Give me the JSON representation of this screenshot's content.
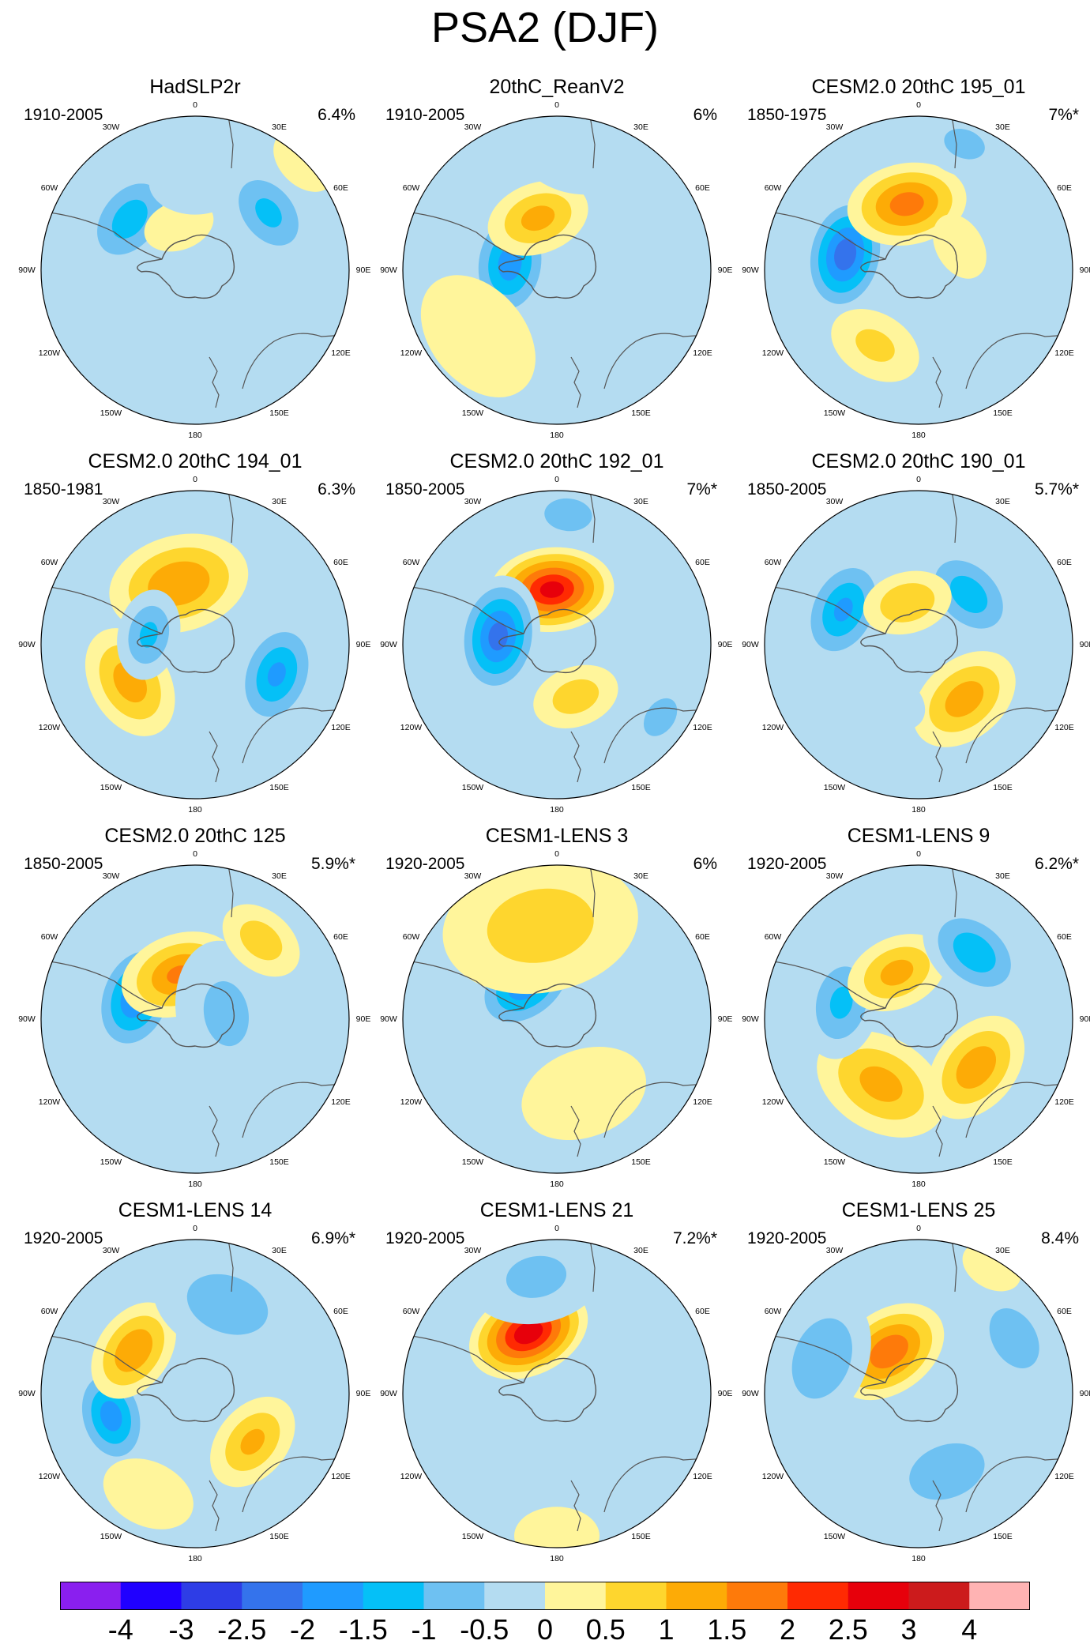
{
  "title": "PSA2 (DJF)",
  "lon_labels": [
    "0",
    "30E",
    "60E",
    "90E",
    "120E",
    "150E",
    "180",
    "150W",
    "120W",
    "90W",
    "60W",
    "30W"
  ],
  "panels": [
    {
      "title": "HadSLP2r",
      "years": "1910-2005",
      "pct": "6.4%",
      "blobs": [
        {
          "a": 232,
          "r": 105,
          "v": -1.5,
          "s": 1.0
        },
        {
          "a": 128,
          "r": 118,
          "v": -1.3,
          "s": 1.0
        },
        {
          "a": 200,
          "r": 60,
          "v": 0.7,
          "s": 0.7
        },
        {
          "a": 180,
          "r": 110,
          "v": -0.7,
          "s": 0.9
        },
        {
          "a": 135,
          "r": 195,
          "v": 0.4,
          "s": 0.8
        }
      ]
    },
    {
      "title": "20thC_ReanV2",
      "years": "1910-2005",
      "pct": "6%",
      "blobs": [
        {
          "a": 262,
          "r": 60,
          "v": -2.0,
          "s": 1.0
        },
        {
          "a": 200,
          "r": 70,
          "v": 1.4,
          "s": 0.9
        },
        {
          "a": 310,
          "r": 130,
          "v": 0.6,
          "s": 1.4
        },
        {
          "a": 170,
          "r": 150,
          "v": -0.6,
          "s": 1.2
        }
      ]
    },
    {
      "title": "CESM2.0 20thC 195_01",
      "years": "1850-1975",
      "pct": "7%*",
      "blobs": [
        {
          "a": 258,
          "r": 95,
          "v": -2.6,
          "s": 1.0
        },
        {
          "a": 190,
          "r": 85,
          "v": 2.0,
          "s": 1.0
        },
        {
          "a": 330,
          "r": 110,
          "v": 0.8,
          "s": 0.9
        },
        {
          "a": 120,
          "r": 60,
          "v": 0.6,
          "s": 0.7
        },
        {
          "a": 160,
          "r": 170,
          "v": -0.8,
          "s": 0.9
        }
      ]
    },
    {
      "title": "CESM2.0 20thC 194_01",
      "years": "1850-1981",
      "pct": "6.3%",
      "blobs": [
        {
          "a": 195,
          "r": 80,
          "v": 1.7,
          "s": 1.2
        },
        {
          "a": 300,
          "r": 95,
          "v": 1.5,
          "s": 1.0
        },
        {
          "a": 70,
          "r": 110,
          "v": -1.8,
          "s": 1.0
        },
        {
          "a": 258,
          "r": 60,
          "v": -1.3,
          "s": 0.8
        }
      ]
    },
    {
      "title": "CESM2.0 20thC 192_01",
      "years": "1850-2005",
      "pct": "7%*",
      "blobs": [
        {
          "a": 185,
          "r": 70,
          "v": 3.0,
          "s": 1.0
        },
        {
          "a": 262,
          "r": 75,
          "v": -2.5,
          "s": 1.0
        },
        {
          "a": 20,
          "r": 70,
          "v": 1.0,
          "s": 0.8
        },
        {
          "a": 175,
          "r": 165,
          "v": -1.0,
          "s": 0.8
        },
        {
          "a": 55,
          "r": 160,
          "v": -1.0,
          "s": 0.7
        }
      ]
    },
    {
      "title": "CESM2.0 20thC 190_01",
      "years": "1850-2005",
      "pct": "5.7%*",
      "blobs": [
        {
          "a": 245,
          "r": 105,
          "v": -1.8,
          "s": 1.0
        },
        {
          "a": 135,
          "r": 90,
          "v": -1.5,
          "s": 1.0
        },
        {
          "a": 40,
          "r": 90,
          "v": 1.5,
          "s": 1.0
        },
        {
          "a": 195,
          "r": 55,
          "v": 1.2,
          "s": 0.8
        },
        {
          "a": 330,
          "r": 80,
          "v": -0.7,
          "s": 0.8
        }
      ]
    },
    {
      "title": "CESM2.0 20thC 125",
      "years": "1850-2005",
      "pct": "5.9%*",
      "blobs": [
        {
          "a": 250,
          "r": 80,
          "v": -2.2,
          "s": 1.0
        },
        {
          "a": 200,
          "r": 60,
          "v": 1.8,
          "s": 1.0
        },
        {
          "a": 100,
          "r": 40,
          "v": -0.8,
          "s": 1.4
        },
        {
          "a": 140,
          "r": 130,
          "v": 1.0,
          "s": 0.8
        }
      ]
    },
    {
      "title": "CESM1-LENS 3",
      "years": "1920-2005",
      "pct": "6%",
      "blobs": [
        {
          "a": 220,
          "r": 60,
          "v": -2.2,
          "s": 1.0
        },
        {
          "a": 190,
          "r": 120,
          "v": 1.0,
          "s": 1.8
        },
        {
          "a": 20,
          "r": 100,
          "v": 0.6,
          "s": 1.3
        }
      ]
    },
    {
      "title": "CESM1-LENS 9",
      "years": "1920-2005",
      "pct": "6.2%*",
      "blobs": [
        {
          "a": 330,
          "r": 95,
          "v": 1.4,
          "s": 1.2
        },
        {
          "a": 50,
          "r": 95,
          "v": 1.6,
          "s": 1.0
        },
        {
          "a": 258,
          "r": 100,
          "v": -1.3,
          "s": 1.0
        },
        {
          "a": 205,
          "r": 65,
          "v": 1.4,
          "s": 0.9
        },
        {
          "a": 140,
          "r": 110,
          "v": -1.6,
          "s": 1.0
        }
      ]
    },
    {
      "title": "CESM1-LENS 14",
      "years": "1920-2005",
      "pct": "6.9%*",
      "blobs": [
        {
          "a": 285,
          "r": 110,
          "v": -2.0,
          "s": 0.9
        },
        {
          "a": 235,
          "r": 95,
          "v": 1.7,
          "s": 0.9
        },
        {
          "a": 50,
          "r": 95,
          "v": 1.3,
          "s": 0.9
        },
        {
          "a": 160,
          "r": 120,
          "v": -1.0,
          "s": 1.4
        },
        {
          "a": 335,
          "r": 140,
          "v": 0.5,
          "s": 1.0
        }
      ]
    },
    {
      "title": "CESM1-LENS 21",
      "years": "1920-2005",
      "pct": "7.2%*",
      "blobs": [
        {
          "a": 205,
          "r": 85,
          "v": 3.2,
          "s": 1.0
        },
        {
          "a": 190,
          "r": 150,
          "v": -0.8,
          "s": 1.3
        },
        {
          "a": 0,
          "r": 180,
          "v": 0.5,
          "s": 0.9
        }
      ]
    },
    {
      "title": "CESM1-LENS 25",
      "years": "1920-2005",
      "pct": "8.4%",
      "blobs": [
        {
          "a": 215,
          "r": 65,
          "v": 2.2,
          "s": 1.0
        },
        {
          "a": 250,
          "r": 130,
          "v": -1.2,
          "s": 1.2
        },
        {
          "a": 20,
          "r": 105,
          "v": -1.1,
          "s": 1.2
        },
        {
          "a": 120,
          "r": 140,
          "v": -0.9,
          "s": 1.2
        },
        {
          "a": 150,
          "r": 185,
          "v": 0.4,
          "s": 0.7
        }
      ]
    }
  ],
  "colorbar": {
    "colors": [
      "#8a1fef",
      "#2000ff",
      "#2e3de6",
      "#3473ec",
      "#1f9bff",
      "#05c0f7",
      "#6ec1f2",
      "#b4dcf1",
      "#fff59b",
      "#fed62e",
      "#fdab06",
      "#fe7a0a",
      "#ff2a02",
      "#e7000b",
      "#cc1b1c",
      "#ffb3b3"
    ],
    "levels": [
      -4,
      -3,
      -2.5,
      -2,
      -1.5,
      -1,
      -0.5,
      0,
      0.5,
      1,
      1.5,
      2,
      2.5,
      3,
      4
    ],
    "tick_labels": [
      "-4",
      "-3",
      "-2.5",
      "-2",
      "-1.5",
      "-1",
      "-0.5",
      "0",
      "0.5",
      "1",
      "1.5",
      "2",
      "2.5",
      "3",
      "4"
    ]
  }
}
